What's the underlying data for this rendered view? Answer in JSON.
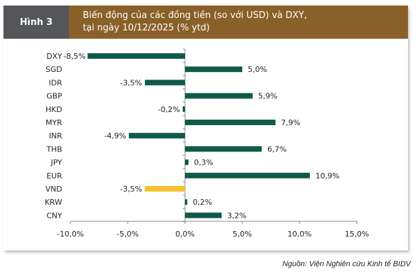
{
  "header": {
    "figure_label": "Hình 3",
    "title_line1": "Biến động của các đồng tiền (so với USD) và DXY,",
    "title_line2": "tại ngày 10/12/2025 (% ytd)"
  },
  "source": "Nguồn: Viện Nghiên cứu Kinh tế BIDV",
  "colors": {
    "bar": "#0f5a4a",
    "highlight": "#f5c12e",
    "header_left": "#545659",
    "header_right": "#8a6029"
  },
  "chart_data": {
    "type": "bar",
    "orientation": "horizontal",
    "categories": [
      "DXY",
      "SGD",
      "IDR",
      "GBP",
      "HKD",
      "MYR",
      "INR",
      "THB",
      "JPY",
      "EUR",
      "VND",
      "KRW",
      "CNY"
    ],
    "values": [
      -8.5,
      5.0,
      -3.5,
      5.9,
      -0.2,
      7.9,
      -4.9,
      6.7,
      0.3,
      10.9,
      -3.5,
      0.2,
      3.2
    ],
    "data_labels": [
      "-8,5%",
      "5,0%",
      "-3,5%",
      "5,9%",
      "-0,2%",
      "7,9%",
      "-4,9%",
      "6,7%",
      "0,3%",
      "10,9%",
      "-3,5%",
      "0,2%",
      "3,2%"
    ],
    "highlight_category": "VND",
    "xlim": [
      -10,
      15
    ],
    "xticks": [
      -10,
      -5,
      0,
      5,
      10,
      15
    ],
    "xtick_labels": [
      "-10,0%",
      "-5,0%",
      "0,0%",
      "5,0%",
      "10,0%",
      "15,0%"
    ],
    "grid": false
  }
}
